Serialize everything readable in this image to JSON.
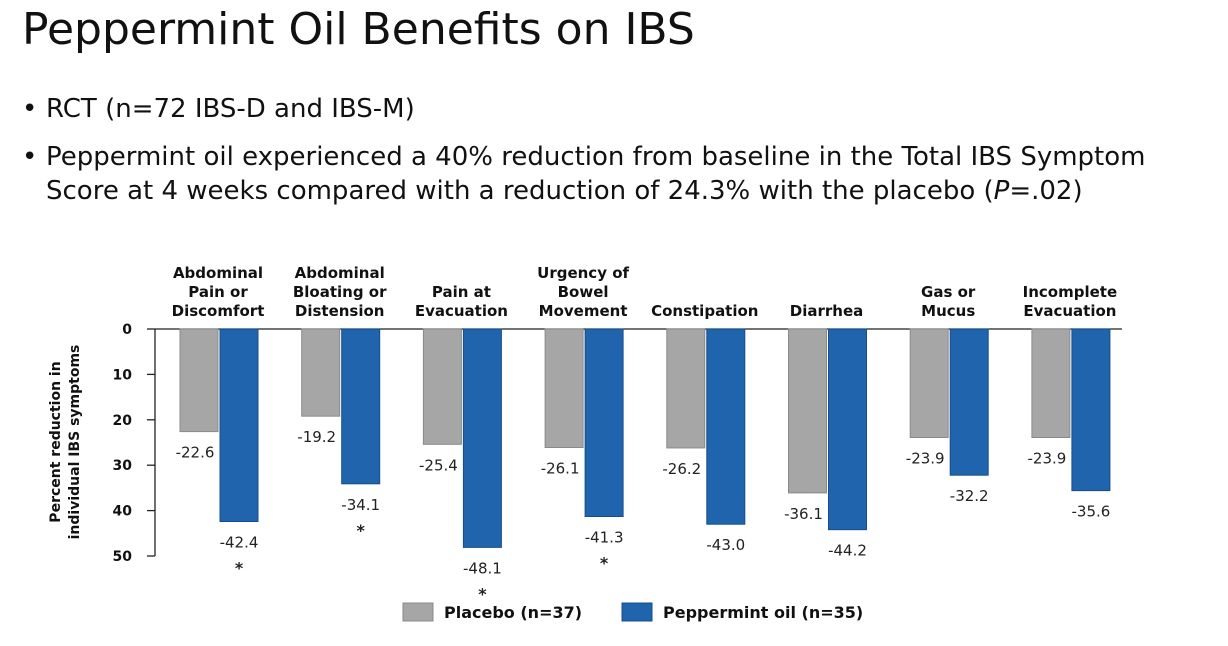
{
  "slide": {
    "title": "Peppermint Oil Benefits on IBS",
    "bullets": [
      {
        "text": "RCT (n=72 IBS-D and IBS-M)"
      },
      {
        "text_parts": [
          "Peppermint oil experienced a 40% reduction from baseline in the Total IBS Symptom",
          "Score at 4 weeks compared with a reduction of 24.3% with the placebo (",
          "P",
          "=.02)"
        ]
      }
    ],
    "bullet_glyph": "•"
  },
  "chart_data": {
    "type": "bar",
    "categories": [
      [
        "Abdominal",
        "Pain or",
        "Discomfort"
      ],
      [
        "Abdominal",
        "Bloating or",
        "Distension"
      ],
      [
        "Pain at",
        "Evacuation"
      ],
      [
        "Urgency of",
        "Bowel",
        "Movement"
      ],
      [
        "Constipation"
      ],
      [
        "Diarrhea"
      ],
      [
        "Gas or",
        "Mucus"
      ],
      [
        "Incomplete",
        "Evacuation"
      ]
    ],
    "series": [
      {
        "name": "Placebo (n=37)",
        "color": "#a6a6a6",
        "values": [
          22.6,
          19.2,
          25.4,
          26.1,
          26.2,
          36.1,
          23.9,
          23.9
        ],
        "labels": [
          "-22.6",
          "-19.2",
          "-25.4",
          "-26.1",
          "-26.2",
          "-36.1",
          "-23.9",
          "-23.9"
        ]
      },
      {
        "name": "Peppermint oil (n=35)",
        "color": "#1f64ad",
        "values": [
          42.4,
          34.1,
          48.1,
          41.3,
          43.0,
          44.2,
          32.2,
          35.6
        ],
        "labels": [
          "-42.4",
          "-34.1",
          "-48.1",
          "-41.3",
          "-43.0",
          "-44.2",
          "-32.2",
          "-35.6"
        ]
      }
    ],
    "significant": [
      true,
      true,
      true,
      true,
      false,
      false,
      false,
      false
    ],
    "significance_marker": "*",
    "ylabel": [
      "Percent reduction in",
      "individual IBS symptoms"
    ],
    "ylim": [
      0,
      50
    ],
    "yticks": [
      "0",
      "10",
      "20",
      "30",
      "40",
      "50"
    ],
    "grid": false,
    "legend": "bottom-center"
  }
}
